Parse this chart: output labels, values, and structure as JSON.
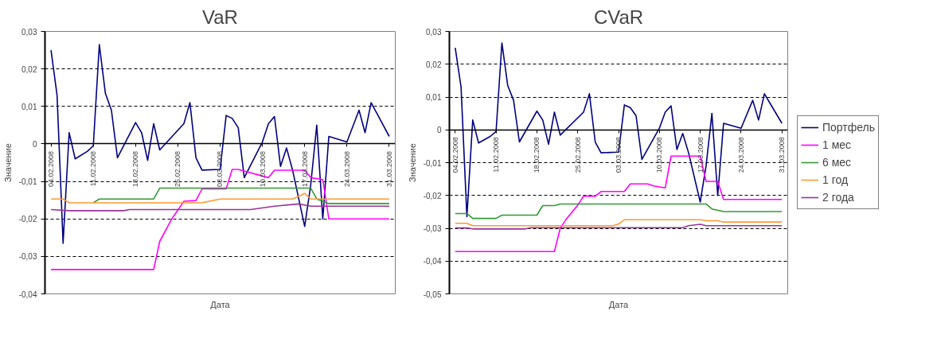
{
  "chart_data": [
    {
      "type": "line",
      "title": "VaR",
      "xlabel": "Дата",
      "ylabel": "Значение",
      "grid": "y",
      "line_style": "solid",
      "xlim": [
        "2008-02-03",
        "2008-04-01"
      ],
      "xticks": [
        {
          "value": "2008-02-04",
          "label": "04.02.2008"
        },
        {
          "value": "2008-02-11",
          "label": "11.02.2008"
        },
        {
          "value": "2008-02-18",
          "label": "18.02.2008"
        },
        {
          "value": "2008-02-25",
          "label": "25.02.2008"
        },
        {
          "value": "2008-03-03",
          "label": "03.03.2008"
        },
        {
          "value": "2008-03-10",
          "label": "10.03.2008"
        },
        {
          "value": "2008-03-17",
          "label": "17.03.2008"
        },
        {
          "value": "2008-03-24",
          "label": "24.03.2008"
        },
        {
          "value": "2008-03-31",
          "label": "31.03.2008"
        }
      ],
      "ylim": [
        -0.04,
        0.03
      ],
      "yticks": [
        {
          "value": -0.04,
          "label": "-0,04"
        },
        {
          "value": -0.03,
          "label": "-0,03"
        },
        {
          "value": -0.02,
          "label": "-0,02"
        },
        {
          "value": -0.01,
          "label": "-0,01"
        },
        0,
        {
          "value": 0.01,
          "label": "0,01"
        },
        {
          "value": 0.02,
          "label": "0,02"
        },
        {
          "value": 0.03,
          "label": "0,03"
        }
      ],
      "series": [
        {
          "color": "#000080",
          "x": [
            "2008-02-04",
            "2008-02-05",
            "2008-02-06",
            "2008-02-07",
            "2008-02-08",
            "2008-02-10",
            "2008-02-11",
            "2008-02-12",
            "2008-02-13",
            "2008-02-14",
            "2008-02-15",
            "2008-02-18",
            "2008-02-19",
            "2008-02-20",
            "2008-02-21",
            "2008-02-22",
            "2008-02-26",
            "2008-02-27",
            "2008-02-28",
            "2008-02-29",
            "2008-03-03",
            "2008-03-04",
            "2008-03-05",
            "2008-03-06",
            "2008-03-07",
            "2008-03-10",
            "2008-03-11",
            "2008-03-12",
            "2008-03-13",
            "2008-03-14",
            "2008-03-15",
            "2008-03-17",
            "2008-03-18",
            "2008-03-19",
            "2008-03-20",
            "2008-03-21",
            "2008-03-24",
            "2008-03-26",
            "2008-03-27",
            "2008-03-28",
            "2008-03-29",
            "2008-03-31"
          ],
          "values": [
            0.025,
            0.013,
            -0.0265,
            0.003,
            -0.004,
            -0.002,
            -0.0005,
            0.0265,
            0.0135,
            0.009,
            -0.0037,
            0.0057,
            0.003,
            -0.0044,
            0.0054,
            -0.0016,
            0.0054,
            0.011,
            -0.0037,
            -0.007,
            -0.0068,
            0.0076,
            0.0068,
            0.0043,
            -0.009,
            0.0005,
            0.0054,
            0.0073,
            -0.006,
            -0.0011,
            -0.007,
            -0.022,
            -0.011,
            0.005,
            -0.02,
            0.002,
            0.0005,
            0.009,
            0.003,
            0.011,
            0.008,
            0.002
          ]
        },
        {
          "color": "#ff00ff",
          "x": [
            "2008-02-04",
            "2008-02-21",
            "2008-02-22",
            "2008-02-24",
            "2008-02-26",
            "2008-02-28",
            "2008-02-29",
            "2008-03-04",
            "2008-03-05",
            "2008-03-06",
            "2008-03-11",
            "2008-03-12",
            "2008-03-17",
            "2008-03-18",
            "2008-03-20",
            "2008-03-21",
            "2008-03-31"
          ],
          "values": [
            -0.0335,
            -0.0335,
            -0.026,
            -0.02,
            -0.0153,
            -0.0151,
            -0.012,
            -0.012,
            -0.0068,
            -0.0068,
            -0.009,
            -0.007,
            -0.007,
            -0.009,
            -0.0095,
            -0.02,
            -0.02
          ]
        },
        {
          "color": "#339933",
          "x": [
            "2008-02-11",
            "2008-02-12",
            "2008-02-21",
            "2008-02-22",
            "2008-03-18",
            "2008-03-19",
            "2008-03-21",
            "2008-03-31"
          ],
          "values": [
            -0.0157,
            -0.0147,
            -0.0147,
            -0.0118,
            -0.0118,
            -0.0147,
            -0.0159,
            -0.0159
          ]
        },
        {
          "color": "#ff9933",
          "x": [
            "2008-02-04",
            "2008-02-06",
            "2008-02-07",
            "2008-02-29",
            "2008-03-03",
            "2008-03-15",
            "2008-03-17",
            "2008-03-18",
            "2008-03-31"
          ],
          "values": [
            -0.0147,
            -0.0147,
            -0.0157,
            -0.0157,
            -0.0147,
            -0.0147,
            -0.0132,
            -0.0147,
            -0.0147
          ]
        },
        {
          "color": "#993399",
          "x": [
            "2008-02-04",
            "2008-02-07",
            "2008-02-16",
            "2008-02-17",
            "2008-03-08",
            "2008-03-12",
            "2008-03-16",
            "2008-03-18",
            "2008-03-31"
          ],
          "values": [
            -0.0175,
            -0.0178,
            -0.0178,
            -0.0175,
            -0.0175,
            -0.0166,
            -0.016,
            -0.0166,
            -0.0166
          ]
        }
      ]
    },
    {
      "type": "line",
      "title": "CVaR",
      "xlabel": "Дата",
      "ylabel": "Значение",
      "grid": "y",
      "legend": "right",
      "line_style": "solid",
      "xlim": [
        "2008-02-03",
        "2008-04-01"
      ],
      "xticks": [
        {
          "value": "2008-02-04",
          "label": "04.02.2008"
        },
        {
          "value": "2008-02-11",
          "label": "11.02.2008"
        },
        {
          "value": "2008-02-18",
          "label": "18.02.2008"
        },
        {
          "value": "2008-02-25",
          "label": "25.02.2008"
        },
        {
          "value": "2008-03-03",
          "label": "03.03.2008"
        },
        {
          "value": "2008-03-10",
          "label": "10.03.2008"
        },
        {
          "value": "2008-03-17",
          "label": "17.03.2008"
        },
        {
          "value": "2008-03-24",
          "label": "24.03.2008"
        },
        {
          "value": "2008-03-31",
          "label": "31.03.2008"
        }
      ],
      "ylim": [
        -0.05,
        0.03
      ],
      "yticks": [
        {
          "value": -0.05,
          "label": "-0,05"
        },
        {
          "value": -0.04,
          "label": "-0,04"
        },
        {
          "value": -0.03,
          "label": "-0,03"
        },
        {
          "value": -0.02,
          "label": "-0,02"
        },
        {
          "value": -0.01,
          "label": "-0,01"
        },
        0,
        {
          "value": 0.01,
          "label": "0,01"
        },
        {
          "value": 0.02,
          "label": "0,02"
        },
        {
          "value": 0.03,
          "label": "0,03"
        }
      ],
      "series": [
        {
          "name": "Портфель",
          "color": "#000080",
          "x": [
            "2008-02-04",
            "2008-02-05",
            "2008-02-06",
            "2008-02-07",
            "2008-02-08",
            "2008-02-10",
            "2008-02-11",
            "2008-02-12",
            "2008-02-13",
            "2008-02-14",
            "2008-02-15",
            "2008-02-18",
            "2008-02-19",
            "2008-02-20",
            "2008-02-21",
            "2008-02-22",
            "2008-02-26",
            "2008-02-27",
            "2008-02-28",
            "2008-02-29",
            "2008-03-03",
            "2008-03-04",
            "2008-03-05",
            "2008-03-06",
            "2008-03-07",
            "2008-03-10",
            "2008-03-11",
            "2008-03-12",
            "2008-03-13",
            "2008-03-14",
            "2008-03-15",
            "2008-03-17",
            "2008-03-18",
            "2008-03-19",
            "2008-03-20",
            "2008-03-21",
            "2008-03-24",
            "2008-03-26",
            "2008-03-27",
            "2008-03-28",
            "2008-03-29",
            "2008-03-31"
          ],
          "values": [
            0.025,
            0.013,
            -0.0265,
            0.003,
            -0.004,
            -0.002,
            -0.0005,
            0.0265,
            0.0135,
            0.009,
            -0.0037,
            0.0057,
            0.003,
            -0.0044,
            0.0054,
            -0.0016,
            0.0054,
            0.011,
            -0.0037,
            -0.007,
            -0.0068,
            0.0076,
            0.0068,
            0.0043,
            -0.009,
            0.0005,
            0.0054,
            0.0073,
            -0.006,
            -0.0011,
            -0.007,
            -0.022,
            -0.011,
            0.005,
            -0.02,
            0.002,
            0.0005,
            0.009,
            0.003,
            0.011,
            0.008,
            0.002
          ]
        },
        {
          "name": "1 мес",
          "color": "#ff00ff",
          "x": [
            "2008-02-04",
            "2008-02-21",
            "2008-02-22",
            "2008-02-23",
            "2008-02-25",
            "2008-02-26",
            "2008-02-28",
            "2008-02-29",
            "2008-03-04",
            "2008-03-05",
            "2008-03-08",
            "2008-03-09",
            "2008-03-11",
            "2008-03-12",
            "2008-03-17",
            "2008-03-18",
            "2008-03-20",
            "2008-03-21",
            "2008-03-31"
          ],
          "values": [
            -0.0371,
            -0.0371,
            -0.03,
            -0.0273,
            -0.023,
            -0.0202,
            -0.0202,
            -0.0188,
            -0.0188,
            -0.0165,
            -0.0165,
            -0.0171,
            -0.0177,
            -0.008,
            -0.008,
            -0.0157,
            -0.0157,
            -0.0212,
            -0.0212
          ]
        },
        {
          "name": "6 мес",
          "color": "#339933",
          "x": [
            "2008-02-04",
            "2008-02-06",
            "2008-02-07",
            "2008-02-11",
            "2008-02-12",
            "2008-02-18",
            "2008-02-19",
            "2008-02-21",
            "2008-02-22",
            "2008-03-18",
            "2008-03-19",
            "2008-03-21",
            "2008-03-31"
          ],
          "values": [
            -0.0255,
            -0.0255,
            -0.027,
            -0.027,
            -0.026,
            -0.026,
            -0.0231,
            -0.0231,
            -0.0226,
            -0.0226,
            -0.0241,
            -0.0249,
            -0.0249
          ]
        },
        {
          "name": "1 год",
          "color": "#ff9933",
          "x": [
            "2008-02-04",
            "2008-02-06",
            "2008-02-07",
            "2008-03-02",
            "2008-03-03",
            "2008-03-04",
            "2008-03-17",
            "2008-03-18",
            "2008-03-20",
            "2008-03-21",
            "2008-03-31"
          ],
          "values": [
            -0.0285,
            -0.0285,
            -0.0292,
            -0.0292,
            -0.0287,
            -0.0274,
            -0.0274,
            -0.0277,
            -0.0277,
            -0.0281,
            -0.0281
          ]
        },
        {
          "name": "2 года",
          "color": "#993399",
          "x": [
            "2008-02-04",
            "2008-02-06",
            "2008-02-07",
            "2008-02-16",
            "2008-02-17",
            "2008-03-14",
            "2008-03-15",
            "2008-03-17",
            "2008-03-18",
            "2008-03-31"
          ],
          "values": [
            -0.0299,
            -0.0299,
            -0.0302,
            -0.0302,
            -0.0298,
            -0.0298,
            -0.0292,
            -0.0288,
            -0.0292,
            -0.0292
          ]
        }
      ]
    }
  ]
}
